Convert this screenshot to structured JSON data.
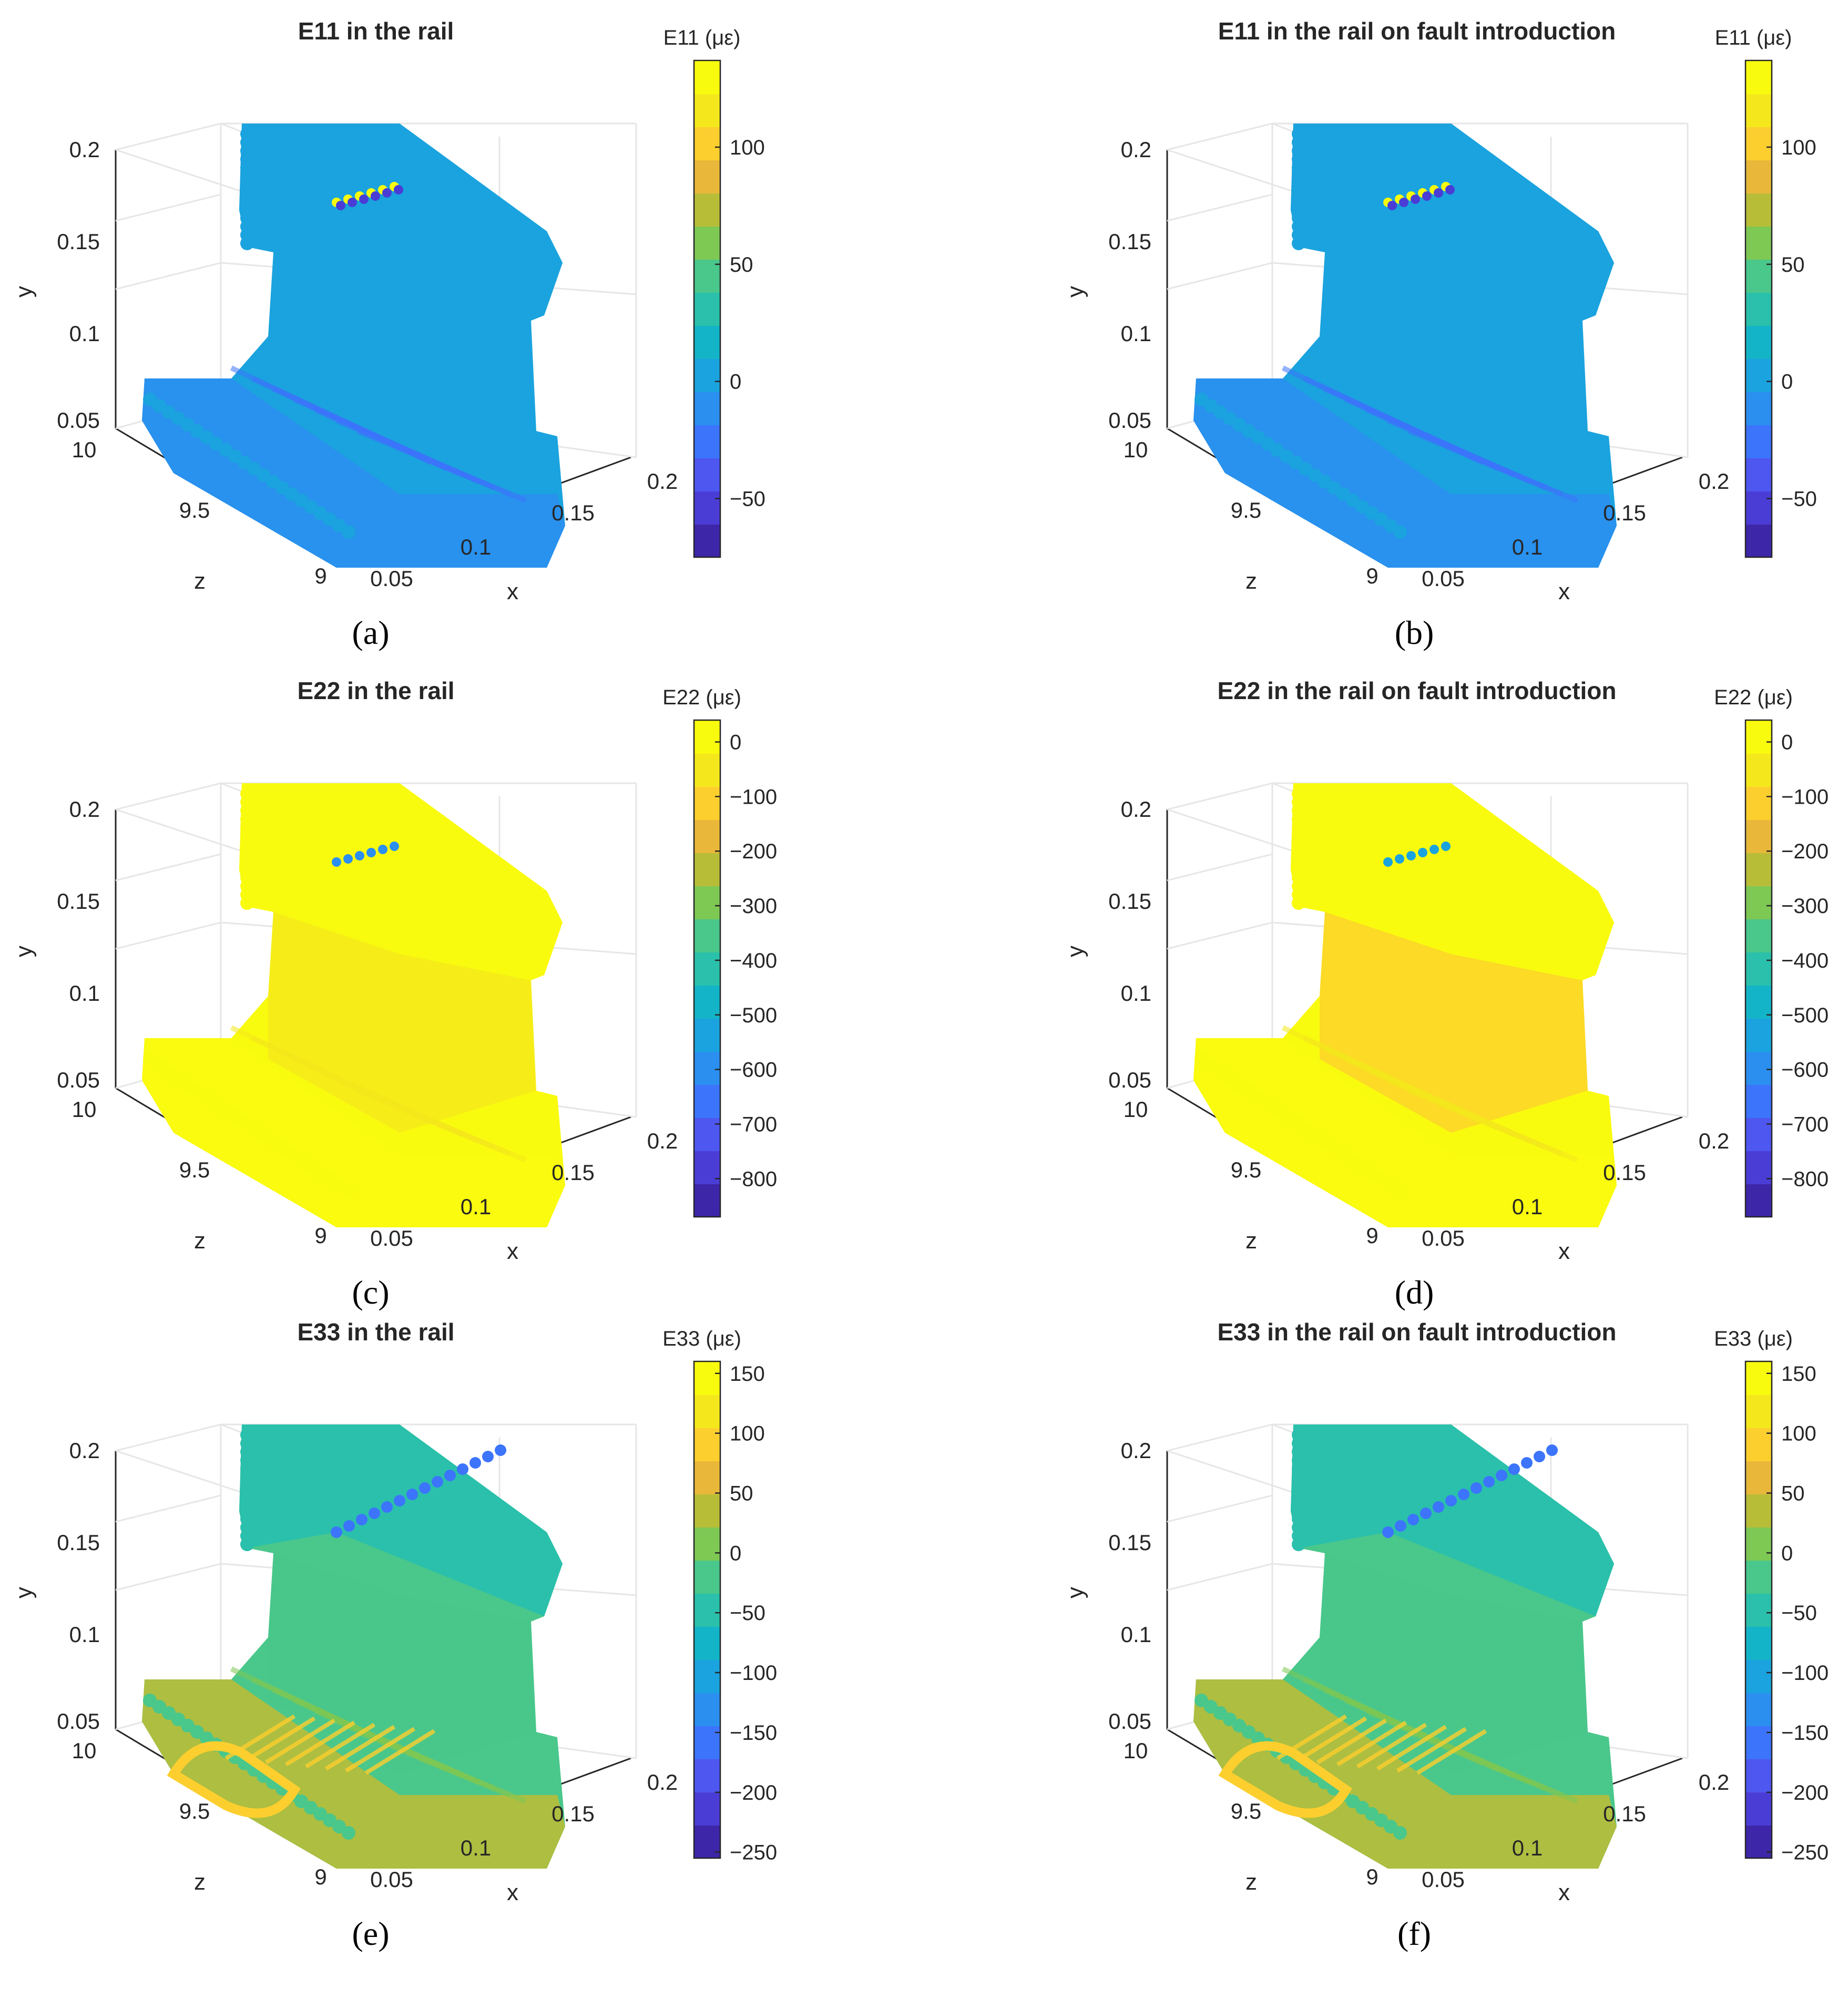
{
  "colors": {
    "parula": [
      "#3e26a8",
      "#4a3dd6",
      "#4e57f0",
      "#3c74fc",
      "#2b8ff0",
      "#1aa3de",
      "#14b4c8",
      "#2ac0ab",
      "#4ac78b",
      "#7ec854",
      "#b8bd38",
      "#e9b83a",
      "#fccf2e",
      "#f4e81c",
      "#f9fb0e"
    ],
    "axis": "#262626",
    "grid": "#e6e6e6"
  },
  "panels": [
    {
      "label": "(a)",
      "title": "E11 in the rail",
      "cbar_label": "E11 (με)",
      "cbar_ticks": [
        "100",
        "50",
        "0",
        "−50"
      ],
      "cbar_tick_values": [
        100,
        50,
        0,
        -50
      ],
      "cbar_range": [
        -75,
        137
      ],
      "base_value": -5,
      "head_value": -5,
      "foot_value": -12,
      "hotspots": [
        {
          "value": 130,
          "where": "head-corner"
        },
        {
          "value": -60,
          "where": "head-corner"
        }
      ]
    },
    {
      "label": "(b)",
      "title": "E11 in the rail on fault introduction",
      "cbar_label": "E11 (με)",
      "cbar_ticks": [
        "100",
        "50",
        "0",
        "−50"
      ],
      "cbar_tick_values": [
        100,
        50,
        0,
        -50
      ],
      "cbar_range": [
        -75,
        137
      ],
      "base_value": -5,
      "head_value": -5,
      "foot_value": -12,
      "hotspots": [
        {
          "value": 135,
          "where": "head-corner"
        },
        {
          "value": -60,
          "where": "head-corner"
        }
      ]
    },
    {
      "label": "(c)",
      "title": "E22 in the rail",
      "cbar_label": "E22 (με)",
      "cbar_ticks": [
        "0",
        "−100",
        "−200",
        "−300",
        "−400",
        "−500",
        "−600",
        "−700",
        "−800"
      ],
      "cbar_tick_values": [
        0,
        -100,
        -200,
        -300,
        -400,
        -500,
        -600,
        -700,
        -800
      ],
      "cbar_range": [
        -870,
        40
      ],
      "base_value": 20,
      "head_value": 30,
      "foot_value": 30,
      "web_value": -40,
      "hotspots": [
        {
          "value": -600,
          "where": "head-corner"
        }
      ]
    },
    {
      "label": "(d)",
      "title": "E22 in the rail on fault introduction",
      "cbar_label": "E22 (με)",
      "cbar_ticks": [
        "0",
        "−100",
        "−200",
        "−300",
        "−400",
        "−500",
        "−600",
        "−700",
        "−800"
      ],
      "cbar_tick_values": [
        0,
        -100,
        -200,
        -300,
        -400,
        -500,
        -600,
        -700,
        -800
      ],
      "cbar_range": [
        -870,
        40
      ],
      "base_value": 20,
      "head_value": 30,
      "foot_value": 30,
      "web_value": -60,
      "hotspots": [
        {
          "value": -550,
          "where": "head-corner"
        }
      ]
    },
    {
      "label": "(e)",
      "title": "E33 in the rail",
      "cbar_label": "E33 (με)",
      "cbar_ticks": [
        "150",
        "100",
        "50",
        "0",
        "−50",
        "−100",
        "−150",
        "−200",
        "−250"
      ],
      "cbar_tick_values": [
        150,
        100,
        50,
        0,
        -50,
        -100,
        -150,
        -200,
        -250
      ],
      "cbar_range": [
        -255,
        160
      ],
      "base_value": -10,
      "head_value": -40,
      "foot_value": 40,
      "web_value": -5,
      "hotspots": [
        {
          "value": -170,
          "where": "head-ridge"
        },
        {
          "value": 100,
          "where": "foot-ring"
        }
      ]
    },
    {
      "label": "(f)",
      "title": "E33 in the rail on fault introduction",
      "cbar_label": "E33 (με)",
      "cbar_ticks": [
        "150",
        "100",
        "50",
        "0",
        "−50",
        "−100",
        "−150",
        "−200",
        "−250"
      ],
      "cbar_tick_values": [
        150,
        100,
        50,
        0,
        -50,
        -100,
        -150,
        -200,
        -250
      ],
      "cbar_range": [
        -255,
        160
      ],
      "base_value": -10,
      "head_value": -40,
      "foot_value": 40,
      "web_value": -5,
      "hotspots": [
        {
          "value": -180,
          "where": "head-ridge"
        },
        {
          "value": 100,
          "where": "foot-ring"
        }
      ]
    }
  ],
  "axes": {
    "ylabel": "y",
    "yticks": [
      "0.2",
      "0.15",
      "0.1",
      "0.05"
    ],
    "zlabel": "z",
    "zticks": [
      "10",
      "9.5",
      "9"
    ],
    "xlabel": "x",
    "xticks": [
      "0.05",
      "0.1",
      "0.15",
      "0.2"
    ]
  },
  "chart_data": [
    {
      "type": "scatter",
      "title": "E11 in the rail",
      "colorbar": "E11 (με)",
      "clim": [
        -75,
        137
      ],
      "ylim": [
        0.05,
        0.2
      ],
      "xlim": [
        0.05,
        0.2
      ],
      "zlim": [
        9,
        10
      ]
    },
    {
      "type": "scatter",
      "title": "E11 in the rail on fault introduction",
      "colorbar": "E11 (με)",
      "clim": [
        -75,
        137
      ],
      "ylim": [
        0.05,
        0.2
      ],
      "xlim": [
        0.05,
        0.2
      ],
      "zlim": [
        9,
        10
      ]
    },
    {
      "type": "scatter",
      "title": "E22 in the rail",
      "colorbar": "E22 (με)",
      "clim": [
        -870,
        40
      ],
      "ylim": [
        0.05,
        0.2
      ],
      "xlim": [
        0.05,
        0.2
      ],
      "zlim": [
        9,
        10
      ]
    },
    {
      "type": "scatter",
      "title": "E22 in the rail on fault introduction",
      "colorbar": "E22 (με)",
      "clim": [
        -870,
        40
      ],
      "ylim": [
        0.05,
        0.2
      ],
      "xlim": [
        0.05,
        0.2
      ],
      "zlim": [
        9,
        10
      ]
    },
    {
      "type": "scatter",
      "title": "E33 in the rail",
      "colorbar": "E33 (με)",
      "clim": [
        -255,
        160
      ],
      "ylim": [
        0.05,
        0.2
      ],
      "xlim": [
        0.05,
        0.2
      ],
      "zlim": [
        9,
        10
      ]
    },
    {
      "type": "scatter",
      "title": "E33 in the rail on fault introduction",
      "colorbar": "E33 (με)",
      "clim": [
        -255,
        160
      ],
      "ylim": [
        0.05,
        0.2
      ],
      "xlim": [
        0.05,
        0.2
      ],
      "zlim": [
        9,
        10
      ]
    }
  ]
}
